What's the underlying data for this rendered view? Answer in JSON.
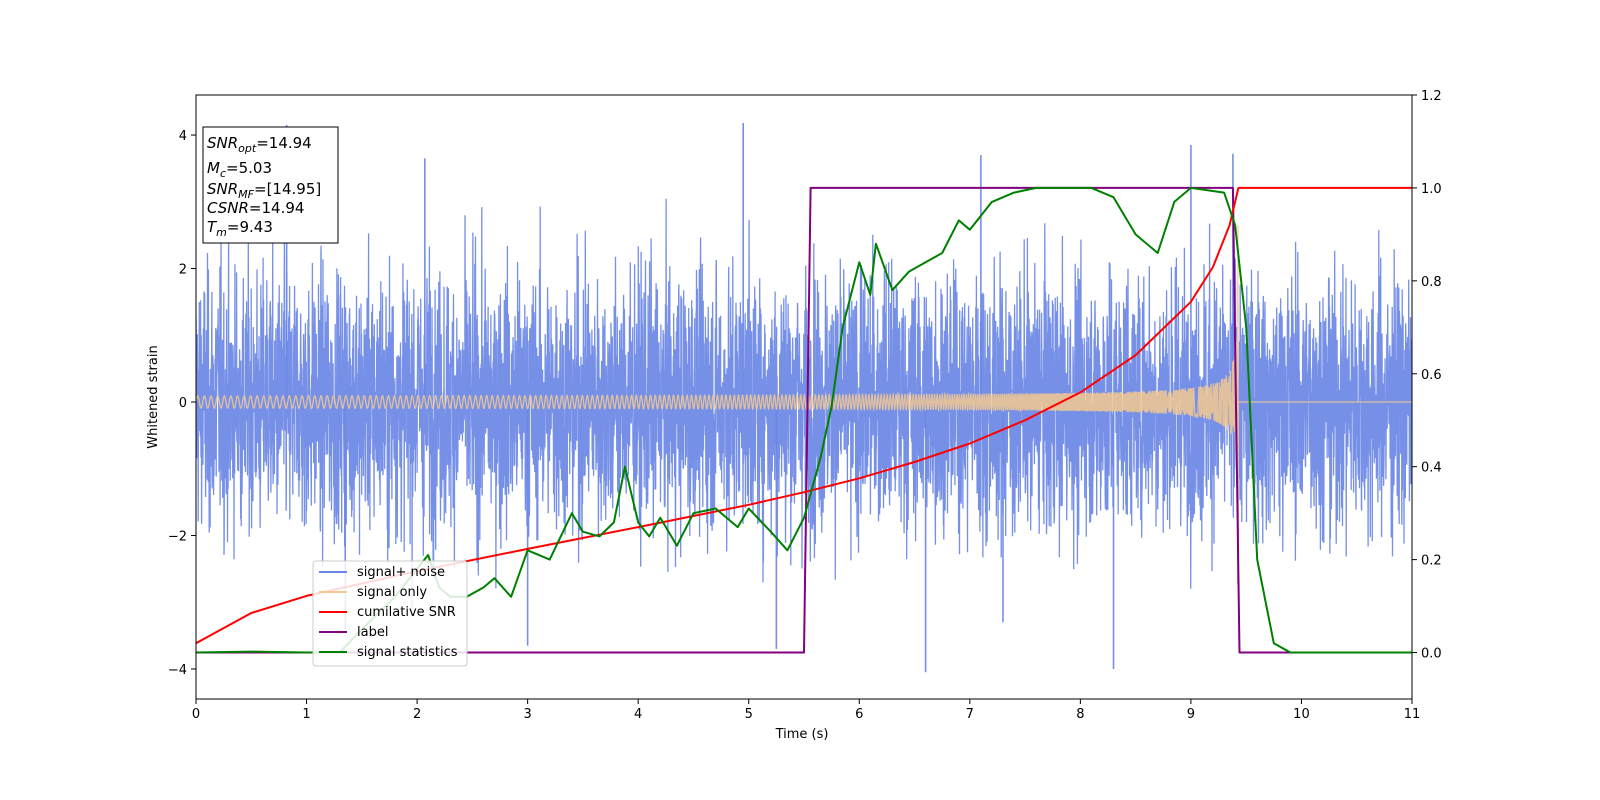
{
  "chart_data": {
    "type": "line",
    "xlabel": "Time (s)",
    "ylabel": "Whitened strain",
    "xlim": [
      0,
      11
    ],
    "ylim": [
      -4.45,
      4.6
    ],
    "y2lim": [
      -0.1,
      1.2
    ],
    "x_ticks": [
      0,
      1,
      2,
      3,
      4,
      5,
      6,
      7,
      8,
      9,
      10,
      11
    ],
    "y_ticks": [
      -4,
      -2,
      0,
      2,
      4
    ],
    "y2_ticks": [
      0.0,
      0.2,
      0.4,
      0.6,
      0.8,
      1.0,
      1.2
    ],
    "x_tick_labels": [
      "0",
      "1",
      "2",
      "3",
      "4",
      "5",
      "6",
      "7",
      "8",
      "9",
      "10",
      "11"
    ],
    "y_tick_labels": [
      "−4",
      "−2",
      "0",
      "2",
      "4"
    ],
    "y2_tick_labels": [
      "0.0",
      "0.2",
      "0.4",
      "0.6",
      "0.8",
      "1.0",
      "1.2"
    ],
    "grid": false,
    "legend_position": "lower-left",
    "merger_time": 9.43,
    "signal_noise_peaks": [
      [
        0.82,
        4.15
      ],
      [
        4.95,
        4.18
      ],
      [
        9.0,
        3.85
      ],
      [
        9.38,
        3.72
      ],
      [
        7.1,
        3.7
      ],
      [
        2.07,
        3.65
      ],
      [
        6.6,
        -4.05
      ],
      [
        8.3,
        -4.0
      ],
      [
        3.0,
        -3.65
      ],
      [
        5.25,
        -3.7
      ],
      [
        1.35,
        -3.4
      ],
      [
        7.3,
        -3.3
      ]
    ],
    "cumulative_snr": [
      [
        0.0,
        0.02
      ],
      [
        0.5,
        0.085
      ],
      [
        1.0,
        0.122
      ],
      [
        2.0,
        0.175
      ],
      [
        3.0,
        0.223
      ],
      [
        4.0,
        0.27
      ],
      [
        5.0,
        0.318
      ],
      [
        5.5,
        0.345
      ],
      [
        6.0,
        0.375
      ],
      [
        6.5,
        0.41
      ],
      [
        7.0,
        0.45
      ],
      [
        7.5,
        0.5
      ],
      [
        8.0,
        0.56
      ],
      [
        8.5,
        0.64
      ],
      [
        9.0,
        0.755
      ],
      [
        9.2,
        0.83
      ],
      [
        9.35,
        0.92
      ],
      [
        9.43,
        1.0
      ],
      [
        11.0,
        1.0
      ]
    ],
    "label_line": [
      [
        0.0,
        0.0
      ],
      [
        5.5,
        0.0
      ],
      [
        5.56,
        1.0
      ],
      [
        9.38,
        1.0
      ],
      [
        9.44,
        0.0
      ],
      [
        11.0,
        0.0
      ]
    ],
    "signal_statistics": [
      [
        0.0,
        0.0
      ],
      [
        0.5,
        0.002
      ],
      [
        1.0,
        0.0
      ],
      [
        1.3,
        0.0
      ],
      [
        1.5,
        0.05
      ],
      [
        1.8,
        0.12
      ],
      [
        2.0,
        0.18
      ],
      [
        2.1,
        0.21
      ],
      [
        2.2,
        0.14
      ],
      [
        2.3,
        0.12
      ],
      [
        2.45,
        0.12
      ],
      [
        2.6,
        0.14
      ],
      [
        2.7,
        0.16
      ],
      [
        2.85,
        0.12
      ],
      [
        3.0,
        0.22
      ],
      [
        3.2,
        0.2
      ],
      [
        3.4,
        0.3
      ],
      [
        3.5,
        0.26
      ],
      [
        3.65,
        0.25
      ],
      [
        3.78,
        0.28
      ],
      [
        3.88,
        0.4
      ],
      [
        4.0,
        0.28
      ],
      [
        4.1,
        0.25
      ],
      [
        4.2,
        0.29
      ],
      [
        4.35,
        0.23
      ],
      [
        4.5,
        0.3
      ],
      [
        4.7,
        0.31
      ],
      [
        4.9,
        0.27
      ],
      [
        5.0,
        0.31
      ],
      [
        5.2,
        0.26
      ],
      [
        5.35,
        0.22
      ],
      [
        5.5,
        0.29
      ],
      [
        5.65,
        0.42
      ],
      [
        5.75,
        0.53
      ],
      [
        5.85,
        0.7
      ],
      [
        6.0,
        0.84
      ],
      [
        6.1,
        0.77
      ],
      [
        6.15,
        0.88
      ],
      [
        6.3,
        0.78
      ],
      [
        6.45,
        0.82
      ],
      [
        6.6,
        0.84
      ],
      [
        6.75,
        0.86
      ],
      [
        6.9,
        0.93
      ],
      [
        7.0,
        0.91
      ],
      [
        7.2,
        0.97
      ],
      [
        7.4,
        0.99
      ],
      [
        7.6,
        1.0
      ],
      [
        7.8,
        1.0
      ],
      [
        8.1,
        1.0
      ],
      [
        8.3,
        0.98
      ],
      [
        8.5,
        0.9
      ],
      [
        8.7,
        0.86
      ],
      [
        8.85,
        0.97
      ],
      [
        9.0,
        1.0
      ],
      [
        9.3,
        0.99
      ],
      [
        9.4,
        0.92
      ],
      [
        9.5,
        0.7
      ],
      [
        9.6,
        0.2
      ],
      [
        9.75,
        0.02
      ],
      [
        9.9,
        0.0
      ],
      [
        11.0,
        0.0
      ]
    ],
    "series": [
      {
        "name": "signal+ noise",
        "color": "#6a87e6"
      },
      {
        "name": "signal only",
        "color": "#f5c98f"
      },
      {
        "name": "cumilative SNR",
        "color": "#ff0000"
      },
      {
        "name": "label",
        "color": "#800080"
      },
      {
        "name": "signal statistics",
        "color": "#008000"
      }
    ]
  },
  "annotation": {
    "snr_opt": {
      "sym": "SNR",
      "sub": "opt",
      "val": "=14.94"
    },
    "mc": {
      "sym": "M",
      "sub": "c",
      "val": "=5.03"
    },
    "snr_mf": {
      "sym": "SNR",
      "sub": "MF",
      "val": "=[14.95]"
    },
    "csnr": {
      "sym": "CSNR",
      "val": "=14.94"
    },
    "tm": {
      "sym": "T",
      "sub": "m",
      "val": "=9.43"
    }
  }
}
